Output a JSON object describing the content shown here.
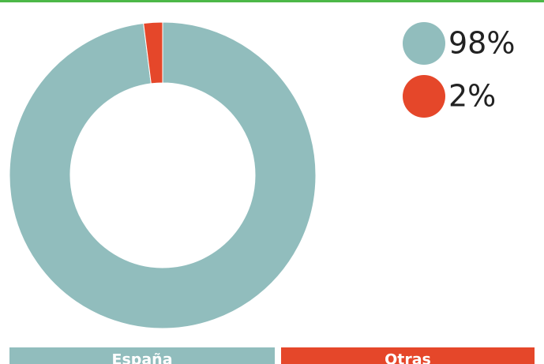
{
  "chart_data": {
    "type": "pie",
    "categories": [
      "España",
      "Otras"
    ],
    "values": [
      98,
      2
    ],
    "value_labels": [
      "98%",
      "2%"
    ],
    "colors": [
      "#91bdbd",
      "#e5472a"
    ]
  }
}
